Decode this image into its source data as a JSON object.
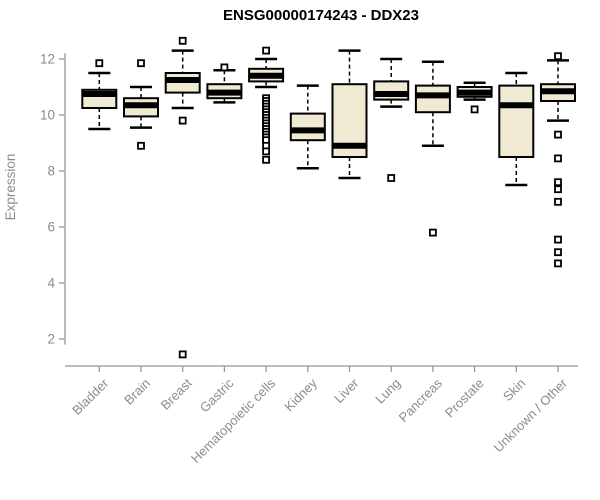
{
  "title": "ENSG00000174243 - DDX23",
  "chart_data": {
    "type": "boxplot",
    "title": "ENSG00000174243 - DDX23",
    "xlabel": "",
    "ylabel": "Expression",
    "yticks": [
      2,
      4,
      6,
      8,
      10,
      12
    ],
    "ylim": [
      1.0,
      12.9
    ],
    "grid": false,
    "legend": "none",
    "colors": {
      "box_fill": "#f0ead2",
      "box_stroke": "#000000",
      "median": "#000000",
      "axis": "#969696",
      "tick_label": "#8c8c8c",
      "title": "#000000"
    },
    "categories": [
      "Bladder",
      "Brain",
      "Breast",
      "Gastric",
      "Hematopoietic cells",
      "Kidney",
      "Liver",
      "Lung",
      "Pancreas",
      "Prostate",
      "Skin",
      "Unknown / Other"
    ],
    "series": [
      {
        "category": "Bladder",
        "whisker_low": 9.5,
        "q1": 10.25,
        "median": 10.75,
        "q3": 10.9,
        "whisker_high": 11.5,
        "outliers": [
          11.85
        ]
      },
      {
        "category": "Brain",
        "whisker_low": 9.55,
        "q1": 9.95,
        "median": 10.35,
        "q3": 10.6,
        "whisker_high": 11.0,
        "outliers": [
          11.85,
          8.9
        ]
      },
      {
        "category": "Breast",
        "whisker_low": 10.25,
        "q1": 10.8,
        "median": 11.25,
        "q3": 11.5,
        "whisker_high": 12.3,
        "outliers": [
          12.65,
          9.8,
          1.45
        ]
      },
      {
        "category": "Gastric",
        "whisker_low": 10.45,
        "q1": 10.6,
        "median": 10.8,
        "q3": 11.1,
        "whisker_high": 11.6,
        "outliers": [
          11.7
        ]
      },
      {
        "category": "Hematopoietic cells",
        "whisker_low": 11.0,
        "q1": 11.2,
        "median": 11.4,
        "q3": 11.65,
        "whisker_high": 12.0,
        "outliers": [
          12.3,
          10.6,
          10.5,
          10.4,
          10.3,
          10.2,
          10.1,
          10.0,
          9.9,
          9.8,
          9.7,
          9.6,
          9.5,
          9.4,
          9.3,
          9.2,
          9.1,
          8.9,
          8.7,
          8.4
        ]
      },
      {
        "category": "Kidney",
        "whisker_low": 8.1,
        "q1": 9.1,
        "median": 9.45,
        "q3": 10.05,
        "whisker_high": 11.05,
        "outliers": []
      },
      {
        "category": "Liver",
        "whisker_low": 7.75,
        "q1": 8.5,
        "median": 8.9,
        "q3": 11.1,
        "whisker_high": 12.3,
        "outliers": []
      },
      {
        "category": "Lung",
        "whisker_low": 10.3,
        "q1": 10.55,
        "median": 10.75,
        "q3": 11.2,
        "whisker_high": 12.0,
        "outliers": [
          7.75
        ]
      },
      {
        "category": "Pancreas",
        "whisker_low": 8.9,
        "q1": 10.1,
        "median": 10.7,
        "q3": 11.05,
        "whisker_high": 11.9,
        "outliers": [
          5.8
        ]
      },
      {
        "category": "Prostate",
        "whisker_low": 10.55,
        "q1": 10.65,
        "median": 10.8,
        "q3": 11.0,
        "whisker_high": 11.15,
        "outliers": [
          10.2
        ]
      },
      {
        "category": "Skin",
        "whisker_low": 7.5,
        "q1": 8.5,
        "median": 10.35,
        "q3": 11.05,
        "whisker_high": 11.5,
        "outliers": []
      },
      {
        "category": "Unknown / Other",
        "whisker_low": 9.8,
        "q1": 10.5,
        "median": 10.85,
        "q3": 11.1,
        "whisker_high": 11.95,
        "outliers": [
          12.1,
          9.3,
          8.45,
          7.6,
          7.35,
          6.9,
          5.55,
          5.1,
          4.7
        ]
      }
    ]
  }
}
